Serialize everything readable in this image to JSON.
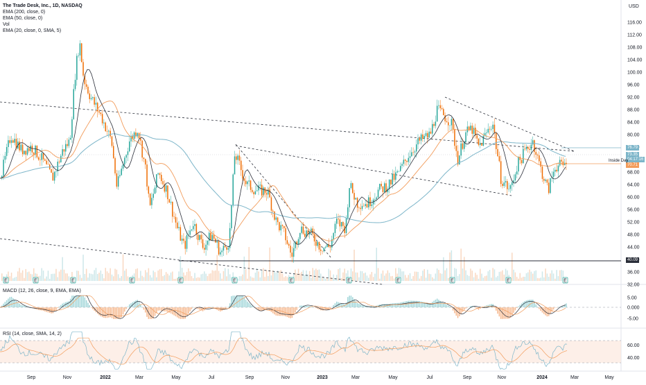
{
  "symbol_line": "The Trade Desk, Inc., 1D, NASDAQ",
  "indicators": [
    "EMA (200, close, 0)",
    "EMA (50, close, 0)",
    "Vol",
    "EMA (20, close, 0, SMA, 5)"
  ],
  "currency": "USD",
  "price_axis_labels": [
    "116.00",
    "112.00",
    "108.00",
    "104.00",
    "100.00",
    "96.00",
    "92.00",
    "88.00",
    "84.00",
    "80.00",
    "76.00",
    "72.00",
    "68.00",
    "64.00",
    "60.00",
    "56.00",
    "52.00",
    "48.00",
    "44.00",
    "40.00",
    "36.00",
    "32.00"
  ],
  "macd_label": "MACD (12, 26, close, 9, EMA, EMA)",
  "macd_axis_labels": [
    "5.00",
    "0.000",
    "-5.00"
  ],
  "rsi_label": "RSI (14, close, SMA, 14, 2)",
  "rsi_axis_labels": [
    "80.00",
    "60.00",
    "40.00",
    "20.00"
  ],
  "time_axis_labels": [
    "Sep",
    "Nov",
    "2022",
    "Mar",
    "May",
    "Jul",
    "Sep",
    "Nov",
    "2023",
    "Mar",
    "May",
    "Jul",
    "Sep",
    "Nov",
    "2024",
    "Mar",
    "May"
  ],
  "price_tags": {
    "high_level": "76.79",
    "last_price": "73.35",
    "countdown": "04:17:16",
    "inside_level": "70.71",
    "support": "40.09"
  },
  "annotation_inside_day": "Inside Day",
  "earnings_marker": "E",
  "colors": {
    "up": "#26a69a",
    "down": "#ef6c00",
    "ema200": "#7cb5c9",
    "ema50": "#f29c5b",
    "ema20": "#2a2e39",
    "macd": "#2962ff",
    "signal": "#ff6d00",
    "rsi": "#7e57c2"
  }
}
